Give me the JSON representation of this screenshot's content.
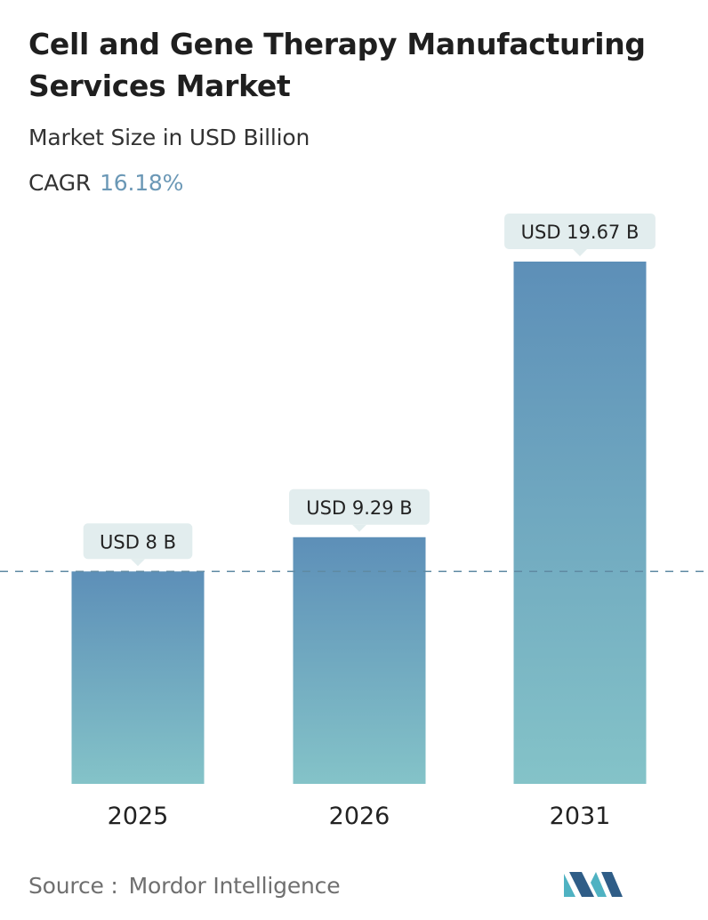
{
  "title": "Cell and Gene Therapy Manufacturing Services Market",
  "subtitle": "Market Size in USD Billion",
  "cagr": {
    "label": "CAGR",
    "value": "16.18%"
  },
  "source": {
    "label": "Source :",
    "value": "Mordor Intelligence"
  },
  "colors": {
    "bar_top": "#5d8fb8",
    "bar_bottom": "#84c3c8",
    "callout_bg": "#e2edee",
    "dashed_line": "#5f8aa3",
    "cagr_value": "#6b98b6",
    "logo_dark": "#2f5d87",
    "logo_teal": "#4fb2c2"
  },
  "logo": {
    "icon": "mordor-intelligence-logo-icon"
  },
  "chart_data": {
    "type": "bar",
    "categories": [
      "2025",
      "2026",
      "2031"
    ],
    "values": [
      8,
      9.29,
      19.67
    ],
    "data_labels": [
      "USD 8 B",
      "USD 9.29 B",
      "USD 19.67 B"
    ],
    "unit": "USD Billion",
    "ylim": [
      0,
      19.67
    ],
    "reference_line": 8,
    "grid": false,
    "legend": "none"
  }
}
